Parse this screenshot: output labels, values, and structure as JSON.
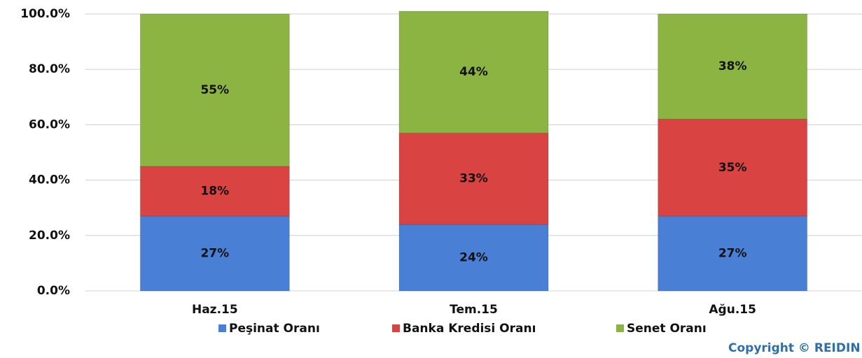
{
  "chart_data": {
    "type": "stacked-bar",
    "categories": [
      "Haz.15",
      "Tem.15",
      "Ağu.15"
    ],
    "series": [
      {
        "name": "Peşinat Oranı",
        "color": "#4a7fd6",
        "values": [
          27,
          24,
          27
        ],
        "value_labels": [
          "27%",
          "24%",
          "27%"
        ]
      },
      {
        "name": "Banka Kredisi Oranı",
        "color": "#d94341",
        "values": [
          18,
          33,
          35
        ],
        "value_labels": [
          "18%",
          "33%",
          "35%"
        ]
      },
      {
        "name": "Senet Oranı",
        "color": "#8cb443",
        "values": [
          55,
          44,
          38
        ],
        "value_labels": [
          "55%",
          "44%",
          "38%"
        ]
      }
    ],
    "ylim": [
      0,
      100
    ],
    "yticks": [
      {
        "value": 0,
        "label": "0.0%"
      },
      {
        "value": 20,
        "label": "20.0%"
      },
      {
        "value": 40,
        "label": "40.0%"
      },
      {
        "value": 60,
        "label": "60.0%"
      },
      {
        "value": 80,
        "label": "80.0%"
      },
      {
        "value": 100,
        "label": "100.0%"
      }
    ],
    "grid": true,
    "legend": "bottom",
    "annotation": "Copyright © REIDIN"
  }
}
